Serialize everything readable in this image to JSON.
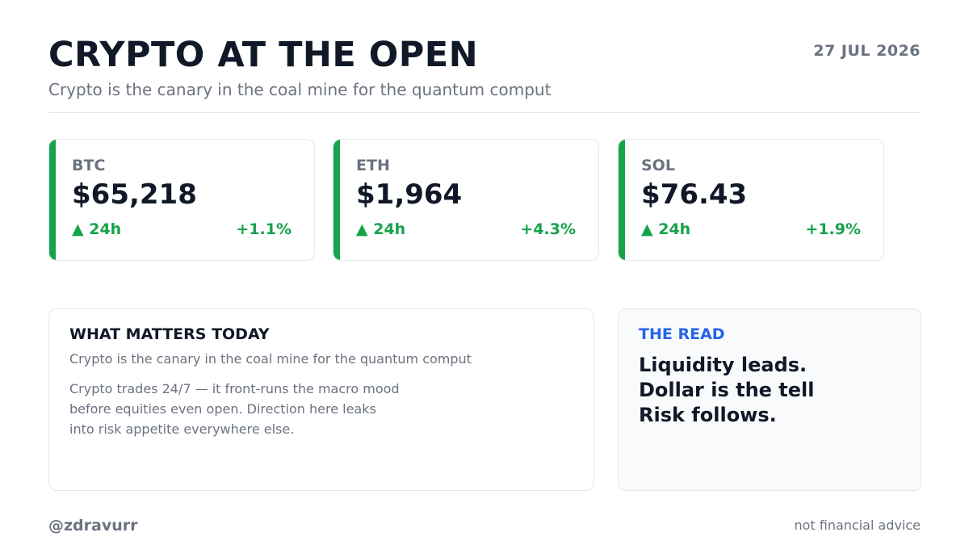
{
  "header": {
    "title": "CRYPTO AT THE OPEN",
    "date": "27 JUL 2026",
    "subtitle": "Crypto is the canary in the coal mine for the quantum comput"
  },
  "tickers": [
    {
      "symbol": "BTC",
      "price": "$65,218",
      "change_label": "▲ 24h",
      "change_pct": "+1.1%",
      "direction": "up"
    },
    {
      "symbol": "ETH",
      "price": "$1,964",
      "change_label": "▲ 24h",
      "change_pct": "+4.3%",
      "direction": "up"
    },
    {
      "symbol": "SOL",
      "price": "$76.43",
      "change_label": "▲ 24h",
      "change_pct": "+1.9%",
      "direction": "up"
    }
  ],
  "what_matters": {
    "heading": "WHAT MATTERS TODAY",
    "subheading": "Crypto is the canary in the coal mine for the quantum comput",
    "body_lines": [
      "Crypto trades 24/7 — it front-runs the macro mood",
      "before equities even open. Direction here leaks",
      "into risk appetite everywhere else."
    ]
  },
  "the_read": {
    "heading": "THE READ",
    "lines": [
      "Liquidity leads.",
      "Dollar is the tell",
      "Risk follows."
    ]
  },
  "footer": {
    "handle": "@zdravurr",
    "disclaimer": "not financial advice"
  },
  "colors": {
    "up": "#16a34a",
    "accent": "#2563eb",
    "text": "#111827",
    "muted": "#6b7280"
  }
}
